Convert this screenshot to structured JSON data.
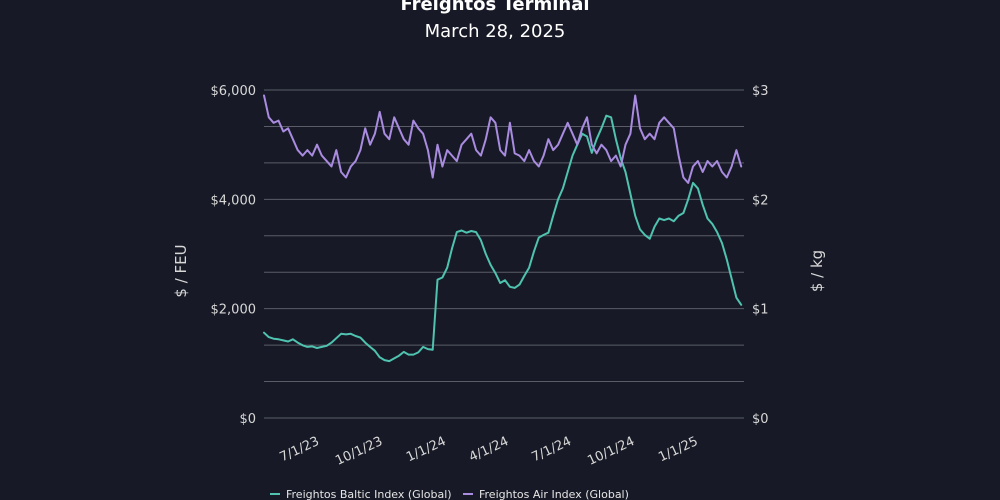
{
  "chart_data": {
    "type": "line",
    "title": "Freightos Terminal",
    "subtitle": "March 28, 2025",
    "ylabel_left": "$ / FEU",
    "ylabel_right": "$ / kg",
    "ylim_left": [
      0,
      6000
    ],
    "ylim_right": [
      0,
      3
    ],
    "y_ticks_left": [
      "$0",
      "$2,000",
      "$4,000",
      "$6,000"
    ],
    "y_ticks_right": [
      "$0",
      "$1",
      "$2",
      "$3"
    ],
    "x_ticks": [
      "7/1/23",
      "10/1/23",
      "1/1/24",
      "4/1/24",
      "7/1/24",
      "10/1/24",
      "1/1/25"
    ],
    "x_range": [
      "2023-05-01",
      "2025-03-28"
    ],
    "grid": true,
    "legend_position": "bottom",
    "series": [
      {
        "name": "Freightos Baltic Index (Global)",
        "axis": "left",
        "color": "#4fc3b0",
        "x": [
          "2023-05-01",
          "2023-05-08",
          "2023-05-15",
          "2023-05-22",
          "2023-05-29",
          "2023-06-05",
          "2023-06-12",
          "2023-06-19",
          "2023-06-26",
          "2023-07-03",
          "2023-07-10",
          "2023-07-17",
          "2023-07-24",
          "2023-07-31",
          "2023-08-07",
          "2023-08-14",
          "2023-08-21",
          "2023-08-28",
          "2023-09-04",
          "2023-09-11",
          "2023-09-18",
          "2023-09-25",
          "2023-10-02",
          "2023-10-09",
          "2023-10-16",
          "2023-10-23",
          "2023-10-30",
          "2023-11-06",
          "2023-11-13",
          "2023-11-20",
          "2023-11-27",
          "2023-12-04",
          "2023-12-11",
          "2023-12-18",
          "2023-12-25",
          "2024-01-01",
          "2024-01-08",
          "2024-01-15",
          "2024-01-22",
          "2024-01-29",
          "2024-02-05",
          "2024-02-12",
          "2024-02-19",
          "2024-02-26",
          "2024-03-04",
          "2024-03-11",
          "2024-03-18",
          "2024-03-25",
          "2024-04-01",
          "2024-04-08",
          "2024-04-15",
          "2024-04-22",
          "2024-04-29",
          "2024-05-06",
          "2024-05-13",
          "2024-05-20",
          "2024-05-27",
          "2024-06-03",
          "2024-06-10",
          "2024-06-17",
          "2024-06-24",
          "2024-07-01",
          "2024-07-08",
          "2024-07-15",
          "2024-07-22",
          "2024-07-29",
          "2024-08-05",
          "2024-08-12",
          "2024-08-19",
          "2024-08-26",
          "2024-09-02",
          "2024-09-09",
          "2024-09-16",
          "2024-09-23",
          "2024-09-30",
          "2024-10-07",
          "2024-10-14",
          "2024-10-21",
          "2024-10-28",
          "2024-11-04",
          "2024-11-11",
          "2024-11-18",
          "2024-11-25",
          "2024-12-02",
          "2024-12-09",
          "2024-12-16",
          "2024-12-23",
          "2024-12-30",
          "2025-01-06",
          "2025-01-13",
          "2025-01-20",
          "2025-01-27",
          "2025-02-03",
          "2025-02-10",
          "2025-02-17",
          "2025-02-24",
          "2025-03-03",
          "2025-03-10",
          "2025-03-17",
          "2025-03-24"
        ],
        "values": [
          1560,
          1480,
          1450,
          1440,
          1420,
          1400,
          1440,
          1380,
          1330,
          1300,
          1310,
          1280,
          1300,
          1320,
          1380,
          1460,
          1540,
          1530,
          1540,
          1500,
          1470,
          1380,
          1300,
          1230,
          1110,
          1060,
          1040,
          1090,
          1140,
          1210,
          1160,
          1160,
          1200,
          1300,
          1260,
          1250,
          2530,
          2570,
          2750,
          3100,
          3400,
          3430,
          3390,
          3420,
          3400,
          3250,
          3000,
          2800,
          2650,
          2470,
          2520,
          2400,
          2380,
          2440,
          2600,
          2750,
          3050,
          3300,
          3350,
          3390,
          3700,
          4000,
          4200,
          4500,
          4800,
          5000,
          5200,
          5150,
          4850,
          5100,
          5300,
          5530,
          5500,
          5100,
          4750,
          4500,
          4100,
          3700,
          3450,
          3350,
          3280,
          3500,
          3650,
          3620,
          3650,
          3600,
          3700,
          3750,
          4000,
          4300,
          4200,
          3900,
          3650,
          3550,
          3400,
          3200,
          2900,
          2550,
          2200,
          2070
        ]
      },
      {
        "name": "Freightos Air Index (Global)",
        "axis": "right",
        "color": "#a98be0",
        "x": [
          "2023-05-01",
          "2023-05-08",
          "2023-05-15",
          "2023-05-22",
          "2023-05-29",
          "2023-06-05",
          "2023-06-12",
          "2023-06-19",
          "2023-06-26",
          "2023-07-03",
          "2023-07-10",
          "2023-07-17",
          "2023-07-24",
          "2023-07-31",
          "2023-08-07",
          "2023-08-14",
          "2023-08-21",
          "2023-08-28",
          "2023-09-04",
          "2023-09-11",
          "2023-09-18",
          "2023-09-25",
          "2023-10-02",
          "2023-10-09",
          "2023-10-16",
          "2023-10-23",
          "2023-10-30",
          "2023-11-06",
          "2023-11-13",
          "2023-11-20",
          "2023-11-27",
          "2023-12-04",
          "2023-12-11",
          "2023-12-18",
          "2023-12-25",
          "2024-01-01",
          "2024-01-08",
          "2024-01-15",
          "2024-01-22",
          "2024-01-29",
          "2024-02-05",
          "2024-02-12",
          "2024-02-19",
          "2024-02-26",
          "2024-03-04",
          "2024-03-11",
          "2024-03-18",
          "2024-03-25",
          "2024-04-01",
          "2024-04-08",
          "2024-04-15",
          "2024-04-22",
          "2024-04-29",
          "2024-05-06",
          "2024-05-13",
          "2024-05-20",
          "2024-05-27",
          "2024-06-03",
          "2024-06-10",
          "2024-06-17",
          "2024-06-24",
          "2024-07-01",
          "2024-07-08",
          "2024-07-15",
          "2024-07-22",
          "2024-07-29",
          "2024-08-05",
          "2024-08-12",
          "2024-08-19",
          "2024-08-26",
          "2024-09-02",
          "2024-09-09",
          "2024-09-16",
          "2024-09-23",
          "2024-09-30",
          "2024-10-07",
          "2024-10-14",
          "2024-10-21",
          "2024-10-28",
          "2024-11-04",
          "2024-11-11",
          "2024-11-18",
          "2024-11-25",
          "2024-12-02",
          "2024-12-09",
          "2024-12-16",
          "2024-12-23",
          "2024-12-30",
          "2025-01-06",
          "2025-01-13",
          "2025-01-20",
          "2025-01-27",
          "2025-02-03",
          "2025-02-10",
          "2025-02-17",
          "2025-02-24",
          "2025-03-03",
          "2025-03-10",
          "2025-03-17",
          "2025-03-24"
        ],
        "values": [
          2.95,
          2.75,
          2.7,
          2.72,
          2.62,
          2.65,
          2.55,
          2.45,
          2.4,
          2.45,
          2.4,
          2.5,
          2.4,
          2.35,
          2.3,
          2.45,
          2.25,
          2.2,
          2.3,
          2.35,
          2.45,
          2.65,
          2.5,
          2.6,
          2.8,
          2.6,
          2.55,
          2.75,
          2.65,
          2.55,
          2.5,
          2.72,
          2.65,
          2.6,
          2.45,
          2.2,
          2.5,
          2.3,
          2.45,
          2.4,
          2.35,
          2.5,
          2.55,
          2.6,
          2.45,
          2.4,
          2.55,
          2.75,
          2.7,
          2.45,
          2.4,
          2.7,
          2.42,
          2.4,
          2.35,
          2.45,
          2.35,
          2.3,
          2.4,
          2.55,
          2.45,
          2.5,
          2.6,
          2.7,
          2.6,
          2.5,
          2.65,
          2.75,
          2.5,
          2.42,
          2.5,
          2.45,
          2.35,
          2.4,
          2.3,
          2.5,
          2.6,
          2.95,
          2.65,
          2.55,
          2.6,
          2.55,
          2.7,
          2.75,
          2.7,
          2.65,
          2.4,
          2.2,
          2.15,
          2.3,
          2.35,
          2.25,
          2.35,
          2.3,
          2.35,
          2.25,
          2.2,
          2.3,
          2.45,
          2.3
        ]
      }
    ]
  }
}
